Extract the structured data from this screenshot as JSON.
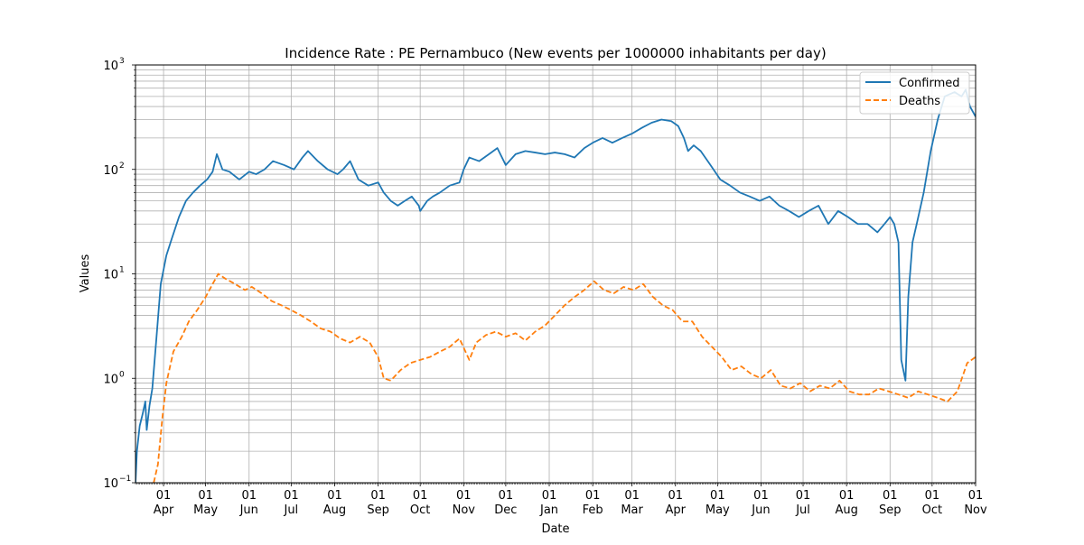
{
  "chart_data": {
    "type": "line",
    "title": "Incidence Rate : PE Pernambuco (New events per 1000000 inhabitants per day)",
    "xlabel": "Date",
    "ylabel": "Values",
    "yscale": "log",
    "ylim": [
      0.1,
      1000
    ],
    "xlim": [
      "2020-03-12",
      "2021-11-01"
    ],
    "grid": true,
    "legend_position": "top-right",
    "y_ticks": [
      {
        "base": "10",
        "exp": "−1"
      },
      {
        "base": "10",
        "exp": "0"
      },
      {
        "base": "10",
        "exp": "1"
      },
      {
        "base": "10",
        "exp": "2"
      },
      {
        "base": "10",
        "exp": "3"
      }
    ],
    "x_ticks": [
      {
        "date": "2020-04-01",
        "day": "01",
        "month": "Apr"
      },
      {
        "date": "2020-05-01",
        "day": "01",
        "month": "May"
      },
      {
        "date": "2020-06-01",
        "day": "01",
        "month": "Jun"
      },
      {
        "date": "2020-07-01",
        "day": "01",
        "month": "Jul"
      },
      {
        "date": "2020-08-01",
        "day": "01",
        "month": "Aug"
      },
      {
        "date": "2020-09-01",
        "day": "01",
        "month": "Sep"
      },
      {
        "date": "2020-10-01",
        "day": "01",
        "month": "Oct"
      },
      {
        "date": "2020-11-01",
        "day": "01",
        "month": "Nov"
      },
      {
        "date": "2020-12-01",
        "day": "01",
        "month": "Dec"
      },
      {
        "date": "2021-01-01",
        "day": "01",
        "month": "Jan"
      },
      {
        "date": "2021-02-01",
        "day": "01",
        "month": "Feb"
      },
      {
        "date": "2021-03-01",
        "day": "01",
        "month": "Mar"
      },
      {
        "date": "2021-04-01",
        "day": "01",
        "month": "Apr"
      },
      {
        "date": "2021-05-01",
        "day": "01",
        "month": "May"
      },
      {
        "date": "2021-06-01",
        "day": "01",
        "month": "Jun"
      },
      {
        "date": "2021-07-01",
        "day": "01",
        "month": "Jul"
      },
      {
        "date": "2021-08-01",
        "day": "01",
        "month": "Aug"
      },
      {
        "date": "2021-09-01",
        "day": "01",
        "month": "Sep"
      },
      {
        "date": "2021-10-01",
        "day": "01",
        "month": "Oct"
      },
      {
        "date": "2021-11-01",
        "day": "01",
        "month": "Nov"
      }
    ],
    "series": [
      {
        "name": "Confirmed",
        "color": "#1f77b4",
        "style": "solid",
        "points": [
          [
            "2020-03-12",
            0.1
          ],
          [
            "2020-03-13",
            0.2
          ],
          [
            "2020-03-15",
            0.35
          ],
          [
            "2020-03-17",
            0.45
          ],
          [
            "2020-03-19",
            0.6
          ],
          [
            "2020-03-20",
            0.32
          ],
          [
            "2020-03-22",
            0.55
          ],
          [
            "2020-03-24",
            0.8
          ],
          [
            "2020-03-27",
            2.5
          ],
          [
            "2020-03-30",
            8
          ],
          [
            "2020-04-03",
            15
          ],
          [
            "2020-04-07",
            22
          ],
          [
            "2020-04-12",
            35
          ],
          [
            "2020-04-17",
            50
          ],
          [
            "2020-04-22",
            60
          ],
          [
            "2020-04-27",
            70
          ],
          [
            "2020-05-02",
            80
          ],
          [
            "2020-05-06",
            95
          ],
          [
            "2020-05-09",
            140
          ],
          [
            "2020-05-13",
            100
          ],
          [
            "2020-05-18",
            95
          ],
          [
            "2020-05-25",
            80
          ],
          [
            "2020-06-01",
            95
          ],
          [
            "2020-06-06",
            90
          ],
          [
            "2020-06-12",
            100
          ],
          [
            "2020-06-18",
            120
          ],
          [
            "2020-06-26",
            110
          ],
          [
            "2020-07-03",
            100
          ],
          [
            "2020-07-09",
            130
          ],
          [
            "2020-07-13",
            150
          ],
          [
            "2020-07-20",
            120
          ],
          [
            "2020-07-27",
            100
          ],
          [
            "2020-08-03",
            90
          ],
          [
            "2020-08-07",
            100
          ],
          [
            "2020-08-12",
            120
          ],
          [
            "2020-08-18",
            80
          ],
          [
            "2020-08-25",
            70
          ],
          [
            "2020-09-01",
            75
          ],
          [
            "2020-09-05",
            60
          ],
          [
            "2020-09-10",
            50
          ],
          [
            "2020-09-15",
            45
          ],
          [
            "2020-09-20",
            50
          ],
          [
            "2020-09-25",
            55
          ],
          [
            "2020-09-30",
            45
          ],
          [
            "2020-10-01",
            40
          ],
          [
            "2020-10-06",
            50
          ],
          [
            "2020-10-10",
            55
          ],
          [
            "2020-10-15",
            60
          ],
          [
            "2020-10-22",
            70
          ],
          [
            "2020-10-29",
            75
          ],
          [
            "2020-11-01",
            100
          ],
          [
            "2020-11-05",
            130
          ],
          [
            "2020-11-12",
            120
          ],
          [
            "2020-11-19",
            140
          ],
          [
            "2020-11-25",
            160
          ],
          [
            "2020-12-01",
            110
          ],
          [
            "2020-12-08",
            140
          ],
          [
            "2020-12-15",
            150
          ],
          [
            "2020-12-22",
            145
          ],
          [
            "2020-12-29",
            140
          ],
          [
            "2021-01-05",
            145
          ],
          [
            "2021-01-12",
            140
          ],
          [
            "2021-01-19",
            130
          ],
          [
            "2021-01-26",
            160
          ],
          [
            "2021-02-01",
            180
          ],
          [
            "2021-02-08",
            200
          ],
          [
            "2021-02-15",
            180
          ],
          [
            "2021-02-22",
            200
          ],
          [
            "2021-03-01",
            220
          ],
          [
            "2021-03-08",
            250
          ],
          [
            "2021-03-15",
            280
          ],
          [
            "2021-03-22",
            300
          ],
          [
            "2021-03-29",
            290
          ],
          [
            "2021-04-03",
            260
          ],
          [
            "2021-04-07",
            200
          ],
          [
            "2021-04-10",
            150
          ],
          [
            "2021-04-14",
            170
          ],
          [
            "2021-04-19",
            150
          ],
          [
            "2021-04-26",
            110
          ],
          [
            "2021-05-03",
            80
          ],
          [
            "2021-05-10",
            70
          ],
          [
            "2021-05-17",
            60
          ],
          [
            "2021-05-24",
            55
          ],
          [
            "2021-05-31",
            50
          ],
          [
            "2021-06-07",
            55
          ],
          [
            "2021-06-14",
            45
          ],
          [
            "2021-06-21",
            40
          ],
          [
            "2021-06-28",
            35
          ],
          [
            "2021-07-05",
            40
          ],
          [
            "2021-07-12",
            45
          ],
          [
            "2021-07-19",
            30
          ],
          [
            "2021-07-26",
            40
          ],
          [
            "2021-08-02",
            35
          ],
          [
            "2021-08-09",
            30
          ],
          [
            "2021-08-16",
            30
          ],
          [
            "2021-08-23",
            25
          ],
          [
            "2021-08-28",
            30
          ],
          [
            "2021-09-01",
            35
          ],
          [
            "2021-09-04",
            30
          ],
          [
            "2021-09-07",
            20
          ],
          [
            "2021-09-09",
            1.5
          ],
          [
            "2021-09-12",
            0.95
          ],
          [
            "2021-09-14",
            6
          ],
          [
            "2021-09-17",
            20
          ],
          [
            "2021-09-20",
            30
          ],
          [
            "2021-09-25",
            60
          ],
          [
            "2021-09-30",
            150
          ],
          [
            "2021-10-05",
            300
          ],
          [
            "2021-10-10",
            500
          ],
          [
            "2021-10-17",
            550
          ],
          [
            "2021-10-22",
            500
          ],
          [
            "2021-10-25",
            580
          ],
          [
            "2021-10-28",
            400
          ],
          [
            "2021-11-01",
            320
          ]
        ]
      },
      {
        "name": "Deaths",
        "color": "#ff7f0e",
        "style": "dashed",
        "points": [
          [
            "2020-03-25",
            0.1
          ],
          [
            "2020-03-28",
            0.15
          ],
          [
            "2020-03-31",
            0.4
          ],
          [
            "2020-04-03",
            0.9
          ],
          [
            "2020-04-08",
            1.8
          ],
          [
            "2020-04-14",
            2.5
          ],
          [
            "2020-04-19",
            3.5
          ],
          [
            "2020-04-25",
            4.5
          ],
          [
            "2020-05-01",
            6
          ],
          [
            "2020-05-06",
            8
          ],
          [
            "2020-05-10",
            10
          ],
          [
            "2020-05-15",
            9
          ],
          [
            "2020-05-22",
            8
          ],
          [
            "2020-05-29",
            7
          ],
          [
            "2020-06-03",
            7.5
          ],
          [
            "2020-06-10",
            6.5
          ],
          [
            "2020-06-17",
            5.5
          ],
          [
            "2020-06-24",
            5
          ],
          [
            "2020-07-01",
            4.5
          ],
          [
            "2020-07-08",
            4
          ],
          [
            "2020-07-15",
            3.5
          ],
          [
            "2020-07-22",
            3
          ],
          [
            "2020-07-29",
            2.8
          ],
          [
            "2020-08-05",
            2.4
          ],
          [
            "2020-08-12",
            2.2
          ],
          [
            "2020-08-19",
            2.5
          ],
          [
            "2020-08-26",
            2.2
          ],
          [
            "2020-09-01",
            1.6
          ],
          [
            "2020-09-05",
            1.0
          ],
          [
            "2020-09-10",
            0.95
          ],
          [
            "2020-09-17",
            1.2
          ],
          [
            "2020-09-24",
            1.4
          ],
          [
            "2020-10-01",
            1.5
          ],
          [
            "2020-10-08",
            1.6
          ],
          [
            "2020-10-15",
            1.8
          ],
          [
            "2020-10-22",
            2.0
          ],
          [
            "2020-10-29",
            2.4
          ],
          [
            "2020-11-05",
            1.5
          ],
          [
            "2020-11-10",
            2.2
          ],
          [
            "2020-11-17",
            2.6
          ],
          [
            "2020-11-24",
            2.8
          ],
          [
            "2020-12-01",
            2.5
          ],
          [
            "2020-12-08",
            2.7
          ],
          [
            "2020-12-15",
            2.3
          ],
          [
            "2020-12-22",
            2.8
          ],
          [
            "2020-12-29",
            3.2
          ],
          [
            "2021-01-05",
            4.0
          ],
          [
            "2021-01-12",
            5.0
          ],
          [
            "2021-01-19",
            6.0
          ],
          [
            "2021-01-26",
            7.0
          ],
          [
            "2021-02-02",
            8.5
          ],
          [
            "2021-02-09",
            7.0
          ],
          [
            "2021-02-16",
            6.5
          ],
          [
            "2021-02-23",
            7.5
          ],
          [
            "2021-03-02",
            7.0
          ],
          [
            "2021-03-09",
            8.0
          ],
          [
            "2021-03-16",
            6.0
          ],
          [
            "2021-03-23",
            5.0
          ],
          [
            "2021-03-30",
            4.5
          ],
          [
            "2021-04-06",
            3.5
          ],
          [
            "2021-04-13",
            3.5
          ],
          [
            "2021-04-20",
            2.5
          ],
          [
            "2021-04-27",
            2.0
          ],
          [
            "2021-05-04",
            1.6
          ],
          [
            "2021-05-11",
            1.2
          ],
          [
            "2021-05-18",
            1.3
          ],
          [
            "2021-05-25",
            1.1
          ],
          [
            "2021-06-01",
            1.0
          ],
          [
            "2021-06-08",
            1.2
          ],
          [
            "2021-06-15",
            0.85
          ],
          [
            "2021-06-22",
            0.8
          ],
          [
            "2021-06-29",
            0.9
          ],
          [
            "2021-07-06",
            0.75
          ],
          [
            "2021-07-13",
            0.85
          ],
          [
            "2021-07-20",
            0.8
          ],
          [
            "2021-07-27",
            0.95
          ],
          [
            "2021-08-03",
            0.75
          ],
          [
            "2021-08-10",
            0.7
          ],
          [
            "2021-08-17",
            0.7
          ],
          [
            "2021-08-24",
            0.8
          ],
          [
            "2021-08-31",
            0.75
          ],
          [
            "2021-09-07",
            0.7
          ],
          [
            "2021-09-14",
            0.65
          ],
          [
            "2021-09-21",
            0.75
          ],
          [
            "2021-09-28",
            0.7
          ],
          [
            "2021-10-05",
            0.65
          ],
          [
            "2021-10-12",
            0.6
          ],
          [
            "2021-10-19",
            0.75
          ],
          [
            "2021-10-26",
            1.4
          ],
          [
            "2021-11-01",
            1.6
          ]
        ]
      }
    ]
  }
}
